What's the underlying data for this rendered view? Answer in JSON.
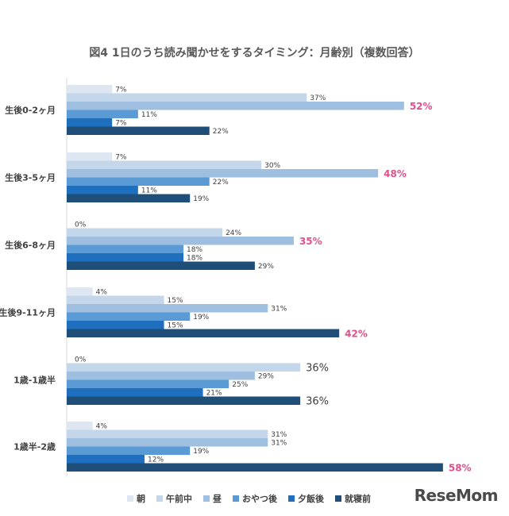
{
  "chart_data": {
    "type": "bar",
    "orientation": "horizontal",
    "title": "図4 1日のうち読み聞かせをするタイミング：月齢別（複数回答）",
    "categories": [
      "生後0-2ヶ月",
      "生後3-5ヶ月",
      "生後6-8ヶ月",
      "生後9-11ヶ月",
      "1歳-1歳半",
      "1歳半-2歳"
    ],
    "series": [
      {
        "name": "朝",
        "color": "#dde6f1",
        "values": [
          7,
          7,
          0,
          4,
          0,
          4
        ]
      },
      {
        "name": "午前中",
        "color": "#c3d6ea",
        "values": [
          37,
          30,
          24,
          15,
          36,
          31
        ]
      },
      {
        "name": "昼",
        "color": "#9fbfe0",
        "values": [
          52,
          48,
          35,
          31,
          29,
          31
        ]
      },
      {
        "name": "おやつ後",
        "color": "#5b9bd5",
        "values": [
          11,
          22,
          18,
          19,
          25,
          19
        ]
      },
      {
        "name": "夕飯後",
        "color": "#1f6fbf",
        "values": [
          7,
          11,
          18,
          15,
          21,
          12
        ]
      },
      {
        "name": "就寝前",
        "color": "#1f4e79",
        "values": [
          22,
          19,
          29,
          42,
          36,
          58
        ]
      }
    ],
    "value_unit": "%",
    "highlighted": [
      {
        "category": "生後0-2ヶ月",
        "series": "昼"
      },
      {
        "category": "生後3-5ヶ月",
        "series": "昼"
      },
      {
        "category": "生後6-8ヶ月",
        "series": "昼"
      },
      {
        "category": "生後9-11ヶ月",
        "series": "就寝前"
      },
      {
        "category": "1歳半-2歳",
        "series": "就寝前"
      }
    ],
    "enlarged": [
      {
        "category": "1歳-1歳半",
        "series": "午前中"
      },
      {
        "category": "1歳-1歳半",
        "series": "就寝前"
      }
    ],
    "highlight_color": "#e0508c",
    "xlim": [
      0,
      60
    ],
    "grid": false,
    "legend_position": "bottom"
  },
  "logo_text": "ReseMom"
}
